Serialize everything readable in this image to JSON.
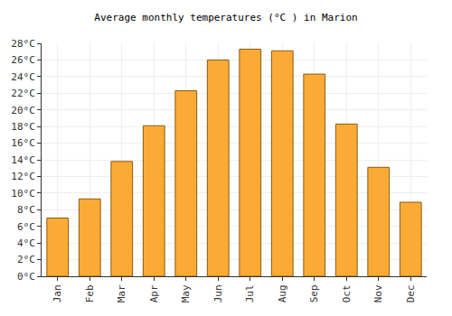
{
  "chart_data": {
    "type": "bar",
    "title": "Average monthly temperatures (°C ) in Marion",
    "categories": [
      "Jan",
      "Feb",
      "Mar",
      "Apr",
      "May",
      "Jun",
      "Jul",
      "Aug",
      "Sep",
      "Oct",
      "Nov",
      "Dec"
    ],
    "values": [
      7.0,
      9.3,
      13.8,
      18.1,
      22.3,
      26.0,
      27.3,
      27.1,
      24.3,
      18.3,
      13.1,
      8.9
    ],
    "color": "#fbab35",
    "ylim": [
      0,
      28
    ],
    "yticks": [
      {
        "value": 0,
        "label": "0°C"
      },
      {
        "value": 2,
        "label": "2°C"
      },
      {
        "value": 4,
        "label": "4°C"
      },
      {
        "value": 6,
        "label": "6°C"
      },
      {
        "value": 8,
        "label": "8°C"
      },
      {
        "value": 10,
        "label": "10°C"
      },
      {
        "value": 12,
        "label": "12°C"
      },
      {
        "value": 14,
        "label": "14°C"
      },
      {
        "value": 16,
        "label": "16°C"
      },
      {
        "value": 18,
        "label": "18°C"
      },
      {
        "value": 20,
        "label": "20°C"
      },
      {
        "value": 22,
        "label": "22°C"
      },
      {
        "value": 24,
        "label": "24°C"
      },
      {
        "value": 26,
        "label": "26°C"
      },
      {
        "value": 28,
        "label": "28°C"
      }
    ],
    "grid": true
  }
}
